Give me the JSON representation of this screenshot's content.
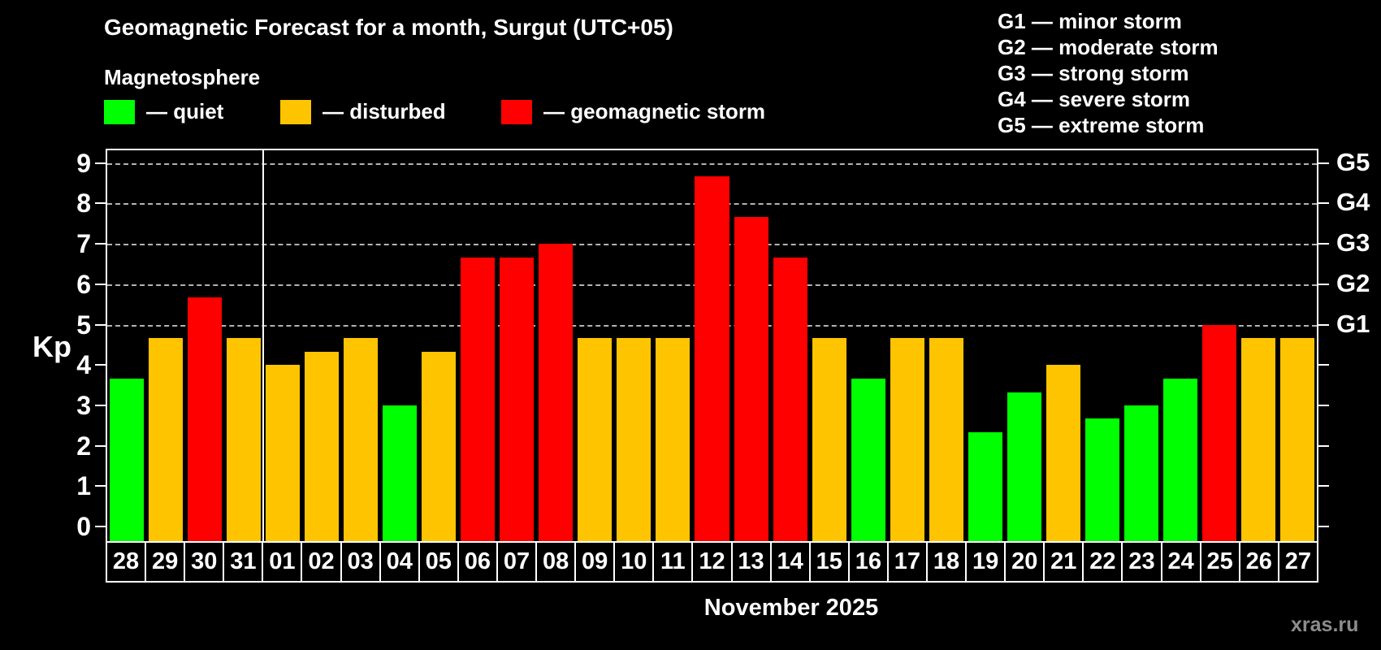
{
  "header": {
    "title": "Geomagnetic Forecast for a month, Surgut (UTC+05)",
    "subtitle": "Magnetosphere"
  },
  "legend": {
    "items": [
      {
        "name": "quiet",
        "label": "— quiet",
        "color": "#00ff00",
        "x": 0
      },
      {
        "name": "disturbed",
        "label": "— disturbed",
        "color": "#ffc400",
        "x": 217
      },
      {
        "name": "storm",
        "label": "— geomagnetic storm",
        "color": "#ff0000",
        "x": 489
      }
    ]
  },
  "g_scale_legend": {
    "items": [
      "G1 — minor storm",
      "G2 — moderate storm",
      "G3 — strong storm",
      "G4 — severe storm",
      "G5 — extreme storm"
    ]
  },
  "axis": {
    "kp_label": "Kp",
    "yticks": [
      0,
      1,
      2,
      3,
      4,
      5,
      6,
      7,
      8,
      9
    ],
    "right_labels": [
      {
        "label": "G1",
        "value": 5
      },
      {
        "label": "G2",
        "value": 6
      },
      {
        "label": "G3",
        "value": 7
      },
      {
        "label": "G4",
        "value": 8
      },
      {
        "label": "G5",
        "value": 9
      }
    ]
  },
  "chart_data": {
    "type": "bar",
    "title": "Geomagnetic Forecast for a month, Surgut (UTC+05)",
    "xlabel": "November 2025",
    "ylabel": "Kp",
    "ylim": [
      0,
      9.4
    ],
    "grid": "dashed horizontal at Kp 5..9 (G1..G5)",
    "legend_position": "top",
    "month_separator_after_index": 3,
    "categories": [
      "28",
      "29",
      "30",
      "31",
      "01",
      "02",
      "03",
      "04",
      "05",
      "06",
      "07",
      "08",
      "09",
      "10",
      "11",
      "12",
      "13",
      "14",
      "15",
      "16",
      "17",
      "18",
      "19",
      "20",
      "21",
      "22",
      "23",
      "24",
      "25",
      "26",
      "27"
    ],
    "values": [
      3.67,
      4.67,
      5.67,
      4.67,
      4.0,
      4.33,
      4.67,
      3.0,
      4.33,
      6.67,
      6.67,
      7.0,
      4.67,
      4.67,
      4.67,
      8.67,
      7.67,
      6.67,
      4.67,
      3.67,
      4.67,
      4.67,
      2.33,
      3.33,
      4.0,
      2.67,
      3.0,
      3.67,
      5.0,
      4.67,
      4.67
    ],
    "statuses": [
      "quiet",
      "disturbed",
      "storm",
      "disturbed",
      "disturbed",
      "disturbed",
      "disturbed",
      "quiet",
      "disturbed",
      "storm",
      "storm",
      "storm",
      "disturbed",
      "disturbed",
      "disturbed",
      "storm",
      "storm",
      "storm",
      "disturbed",
      "quiet",
      "disturbed",
      "disturbed",
      "quiet",
      "quiet",
      "disturbed",
      "quiet",
      "quiet",
      "quiet",
      "storm",
      "disturbed",
      "disturbed"
    ],
    "status_colors": {
      "quiet": "#00ff00",
      "disturbed": "#ffc400",
      "storm": "#ff0000"
    }
  },
  "footer": {
    "month_label": "November 2025",
    "watermark": "xras.ru"
  }
}
